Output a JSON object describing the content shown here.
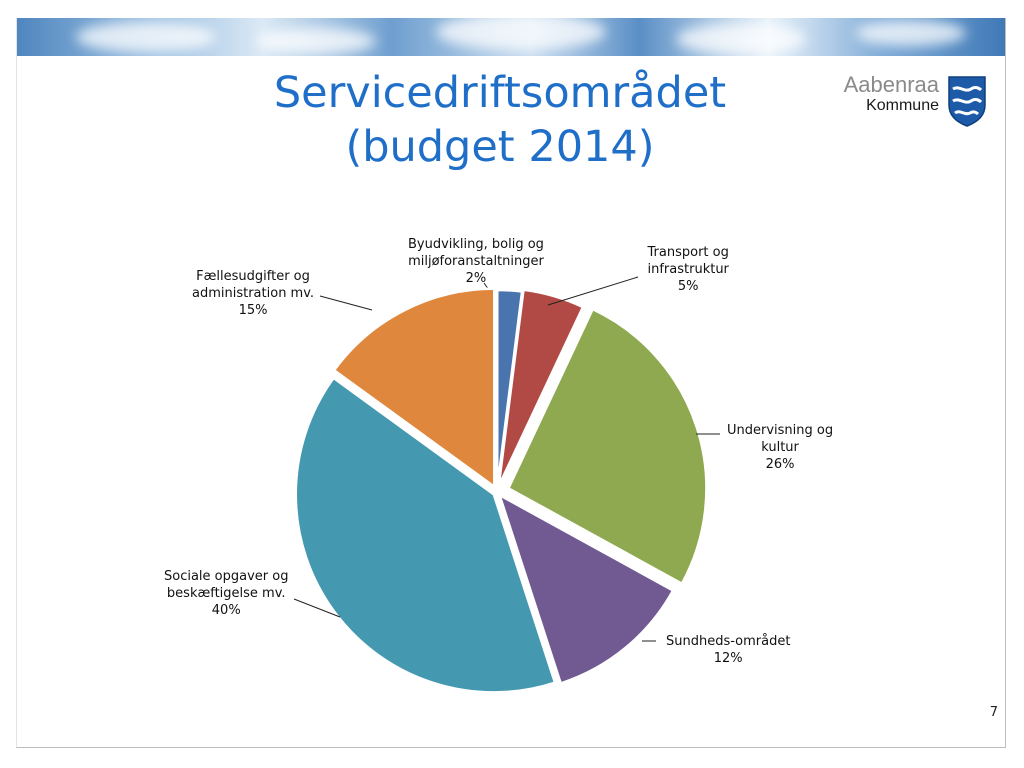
{
  "slide": {
    "title_line1": "Servicedriftsområdet",
    "title_line2": "(budget 2014)",
    "page_number": "7",
    "logo_line1": "Aabenraa",
    "logo_line2": "Kommune"
  },
  "chart_data": {
    "type": "pie",
    "title": "Servicedriftsområdet (budget 2014)",
    "unit": "%",
    "slices": [
      {
        "label_lines": [
          "Byudvikling, bolig og",
          "miljøforanstaltninger"
        ],
        "value": 2,
        "value_label": "2%",
        "color": "#4a74ae"
      },
      {
        "label_lines": [
          "Transport og",
          "infrastruktur"
        ],
        "value": 5,
        "value_label": "5%",
        "color": "#b14a45"
      },
      {
        "label_lines": [
          "Undervisning og",
          "kultur"
        ],
        "value": 26,
        "value_label": "26%",
        "color": "#8ea94f"
      },
      {
        "label_lines": [
          "Sundheds-området"
        ],
        "value": 12,
        "value_label": "12%",
        "color": "#705a91"
      },
      {
        "label_lines": [
          "Sociale opgaver og",
          "beskæftigelse mv."
        ],
        "value": 40,
        "value_label": "40%",
        "color": "#4499b0"
      },
      {
        "label_lines": [
          "Fællesudgifter og",
          "administration mv."
        ],
        "value": 15,
        "value_label": "15%",
        "color": "#df873c"
      }
    ]
  }
}
